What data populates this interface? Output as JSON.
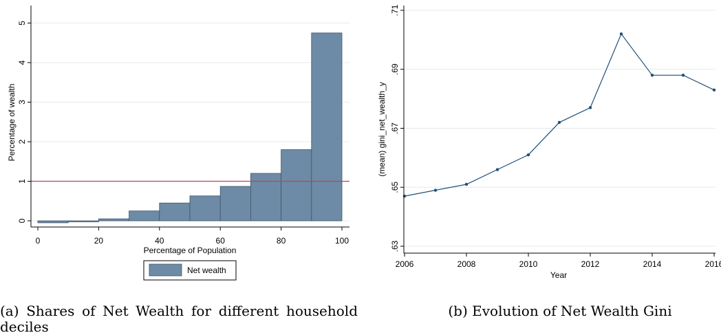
{
  "chart_data": [
    {
      "type": "bar",
      "panel": "a",
      "title": "",
      "xlabel": "Percentage of Population",
      "ylabel": "Percentage of wealth",
      "bins": [
        [
          0,
          10
        ],
        [
          10,
          20
        ],
        [
          20,
          30
        ],
        [
          30,
          40
        ],
        [
          40,
          50
        ],
        [
          50,
          60
        ],
        [
          60,
          70
        ],
        [
          70,
          80
        ],
        [
          80,
          90
        ],
        [
          90,
          100
        ]
      ],
      "series": [
        {
          "name": "Net wealth",
          "values": [
            -0.05,
            0.0,
            0.05,
            0.25,
            0.45,
            0.63,
            0.87,
            1.2,
            1.8,
            4.75
          ]
        }
      ],
      "reference_line": 1,
      "xlim": [
        0,
        100
      ],
      "ylim": [
        -0.1,
        5.25
      ],
      "xticks": [
        "0",
        "20",
        "40",
        "60",
        "80",
        "100"
      ],
      "yticks": [
        "0",
        "1",
        "2",
        "3",
        "4",
        "5"
      ],
      "grid": true,
      "legend_position": "bottom",
      "colors": {
        "bar": "#6d8ba6",
        "bar_edge": "#3e5568",
        "reference_line": "#c0405a",
        "grid": "#e6e9ec"
      }
    },
    {
      "type": "line",
      "panel": "b",
      "title": "",
      "xlabel": "Year",
      "ylabel": "(mean) gini_net_wealth_y",
      "x": [
        2006,
        2007,
        2008,
        2009,
        2010,
        2011,
        2012,
        2013,
        2014,
        2015,
        2016
      ],
      "series": [
        {
          "values": [
            0.647,
            0.649,
            0.651,
            0.656,
            0.661,
            0.672,
            0.677,
            0.702,
            0.688,
            0.688,
            0.683
          ]
        }
      ],
      "xlim": [
        2006,
        2016
      ],
      "ylim": [
        0.63,
        0.71
      ],
      "xticks": [
        "2006",
        "2008",
        "2010",
        "2012",
        "2014",
        "2016"
      ],
      "yticks": [
        ".63",
        ".65",
        ".67",
        ".69",
        ".71"
      ],
      "grid": true,
      "legend_position": "none",
      "colors": {
        "line": "#1f4f78",
        "grid": "#e6e9ec"
      }
    }
  ],
  "captions": {
    "a": "(a) Shares of Net Wealth for different household deciles",
    "b": "(b) Evolution of Net Wealth Gini"
  }
}
